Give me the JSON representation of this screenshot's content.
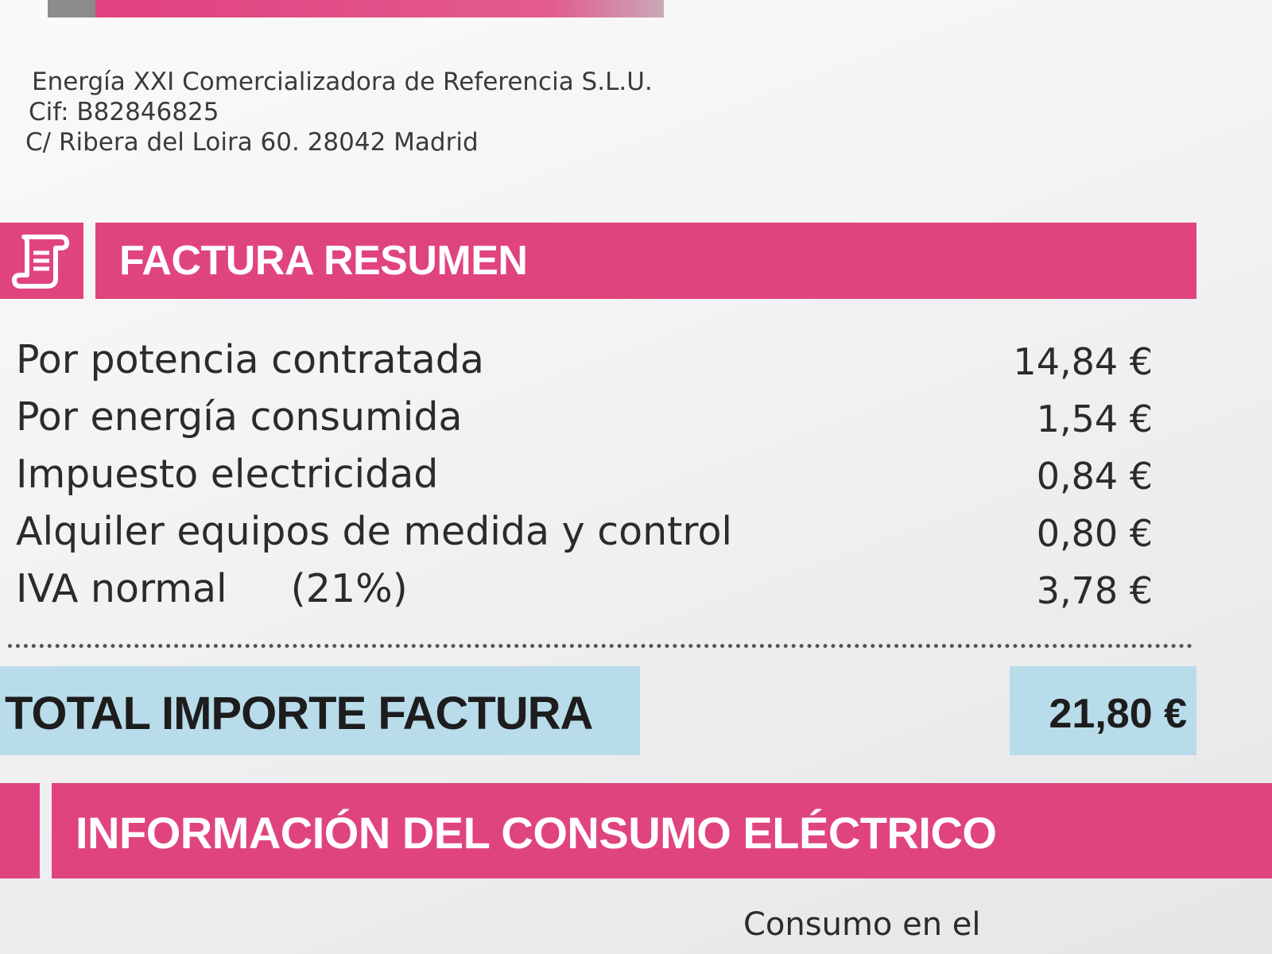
{
  "issuer": {
    "name": "Energía XXI Comercializadora de Referencia S.L.U.",
    "cif": "Cif: B82846825",
    "address": "C/ Ribera del Loira 60. 28042 Madrid"
  },
  "summary": {
    "title": "FACTURA RESUMEN",
    "icon": "invoice-scroll-icon",
    "items": [
      {
        "label": "Por potencia contratada",
        "amount": "14,84 €"
      },
      {
        "label": "Por energía consumida",
        "amount": "1,54 €"
      },
      {
        "label": "Impuesto electricidad",
        "amount": "0,84 €"
      },
      {
        "label": "Alquiler equipos de medida y control",
        "amount": "0,80 €"
      },
      {
        "label": "IVA normal",
        "pct": "(21%)",
        "amount": "3,78 €"
      }
    ],
    "total_label": "TOTAL IMPORTE FACTURA",
    "total_amount": "21,80 €"
  },
  "consumption": {
    "title": "INFORMACIÓN DEL CONSUMO ELÉCTRICO",
    "subtext": "Consumo en el"
  },
  "colors": {
    "accent_pink": "#e0447f",
    "total_highlight": "#b9dcea"
  }
}
